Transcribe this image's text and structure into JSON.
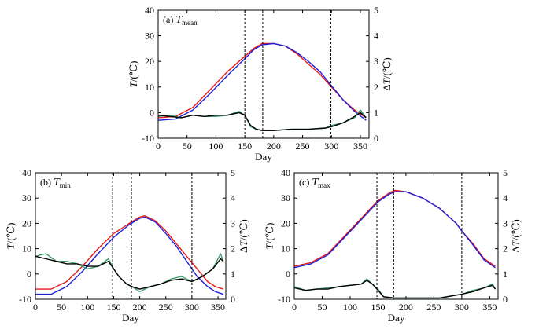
{
  "chart_data": [
    {
      "type": "line",
      "panel_label": "(a) ",
      "title_symbol": "T",
      "title_subscript": "mean",
      "xlabel": "Day",
      "ylabel_left_symbol": "T",
      "ylabel_left_unit": "/(℃)",
      "ylabel_right_prefix": "Δ",
      "ylabel_right_symbol": "T",
      "ylabel_right_unit": "/(℃)",
      "xlim": [
        0,
        365
      ],
      "ylim_left": [
        -10,
        40
      ],
      "ylim_right": [
        0,
        5
      ],
      "xticks": [
        0,
        50,
        100,
        150,
        200,
        250,
        300,
        350
      ],
      "yticks_left": [
        -10,
        0,
        10,
        20,
        30,
        40
      ],
      "yticks_right": [
        0,
        1,
        2,
        3,
        4,
        5
      ],
      "vlines": [
        150,
        181,
        299
      ],
      "series": [
        {
          "axis": "left",
          "color": "#e8191c",
          "x": [
            0,
            30,
            60,
            90,
            120,
            150,
            165,
            180,
            200,
            220,
            240,
            260,
            280,
            300,
            320,
            340,
            360
          ],
          "values": [
            -2,
            -1.5,
            2,
            9,
            16,
            22,
            25,
            27,
            27,
            26,
            23,
            19,
            15,
            10,
            5,
            1,
            -2
          ]
        },
        {
          "axis": "left",
          "color": "#1f1fd6",
          "x": [
            0,
            30,
            60,
            90,
            120,
            150,
            165,
            180,
            200,
            220,
            240,
            260,
            280,
            300,
            320,
            340,
            360
          ],
          "values": [
            -3,
            -2.5,
            1,
            7.5,
            14.5,
            21,
            24.5,
            26.5,
            27,
            26,
            23.5,
            20,
            16,
            10.5,
            5,
            0.5,
            -3
          ]
        },
        {
          "axis": "right",
          "color": "#3f9a6d",
          "x": [
            0,
            20,
            40,
            60,
            80,
            100,
            120,
            140,
            150,
            160,
            170,
            180,
            200,
            230,
            260,
            290,
            300,
            320,
            340,
            350,
            360
          ],
          "values": [
            0.85,
            0.9,
            0.8,
            0.9,
            0.85,
            0.85,
            0.9,
            1.05,
            0.9,
            0.45,
            0.35,
            0.3,
            0.3,
            0.35,
            0.35,
            0.4,
            0.5,
            0.6,
            0.8,
            1.1,
            0.8
          ]
        },
        {
          "axis": "right",
          "color": "#000000",
          "x": [
            0,
            20,
            40,
            60,
            80,
            100,
            120,
            140,
            150,
            160,
            170,
            180,
            200,
            230,
            260,
            290,
            300,
            320,
            340,
            350,
            360
          ],
          "values": [
            0.9,
            0.85,
            0.8,
            0.9,
            0.85,
            0.9,
            0.9,
            1.0,
            0.9,
            0.5,
            0.35,
            0.3,
            0.3,
            0.35,
            0.35,
            0.4,
            0.45,
            0.6,
            0.85,
            1.0,
            0.8
          ]
        }
      ]
    },
    {
      "type": "line",
      "panel_label": "(b) ",
      "title_symbol": "T",
      "title_subscript": "min",
      "xlabel": "Day",
      "ylabel_left_symbol": "T",
      "ylabel_left_unit": "/(℃)",
      "ylabel_right_prefix": "Δ",
      "ylabel_right_symbol": "T",
      "ylabel_right_unit": "/(℃)",
      "xlim": [
        0,
        365
      ],
      "ylim_left": [
        -10,
        40
      ],
      "ylim_right": [
        0,
        5
      ],
      "xticks": [
        0,
        50,
        100,
        150,
        200,
        250,
        300,
        350
      ],
      "yticks_left": [
        -10,
        0,
        10,
        20,
        30,
        40
      ],
      "yticks_right": [
        0,
        1,
        2,
        3,
        4,
        5
      ],
      "vlines": [
        148,
        184,
        300
      ],
      "series": [
        {
          "axis": "left",
          "color": "#e8191c",
          "x": [
            0,
            30,
            60,
            90,
            120,
            150,
            180,
            200,
            210,
            230,
            250,
            270,
            290,
            310,
            330,
            345,
            360
          ],
          "values": [
            -6,
            -6,
            -3,
            3,
            10,
            16,
            20,
            22.5,
            23,
            21,
            17,
            12,
            7,
            2,
            -3,
            -5,
            -6
          ]
        },
        {
          "axis": "left",
          "color": "#1f1fd6",
          "x": [
            0,
            30,
            60,
            90,
            120,
            150,
            180,
            200,
            210,
            230,
            250,
            270,
            290,
            310,
            330,
            345,
            360
          ],
          "values": [
            -8,
            -8,
            -5,
            1,
            8,
            14.5,
            19.5,
            22,
            22.5,
            20.5,
            16,
            11,
            5,
            -1,
            -5,
            -7,
            -8
          ]
        },
        {
          "axis": "right",
          "color": "#3f9a6d",
          "x": [
            0,
            20,
            40,
            60,
            80,
            100,
            120,
            140,
            150,
            160,
            175,
            185,
            200,
            220,
            240,
            260,
            280,
            300,
            320,
            340,
            355,
            360
          ],
          "values": [
            1.7,
            1.8,
            1.5,
            1.5,
            1.4,
            1.2,
            1.3,
            1.6,
            1.2,
            0.9,
            0.6,
            0.5,
            0.3,
            0.5,
            0.6,
            0.8,
            0.9,
            0.7,
            0.9,
            1.2,
            1.8,
            1.5
          ]
        },
        {
          "axis": "right",
          "color": "#000000",
          "x": [
            0,
            20,
            40,
            60,
            80,
            100,
            120,
            140,
            150,
            160,
            175,
            185,
            200,
            220,
            240,
            260,
            280,
            300,
            320,
            340,
            355,
            360
          ],
          "values": [
            1.7,
            1.6,
            1.5,
            1.4,
            1.4,
            1.3,
            1.3,
            1.5,
            1.2,
            0.9,
            0.6,
            0.5,
            0.4,
            0.5,
            0.6,
            0.75,
            0.8,
            0.7,
            0.9,
            1.2,
            1.6,
            1.5
          ]
        }
      ]
    },
    {
      "type": "line",
      "panel_label": "(c) ",
      "title_symbol": "T",
      "title_subscript": "max",
      "xlabel": "Day",
      "ylabel_left_symbol": "T",
      "ylabel_left_unit": "/(℃)",
      "ylabel_right_prefix": "Δ",
      "ylabel_right_symbol": "T",
      "ylabel_right_unit": "/(℃)",
      "xlim": [
        0,
        365
      ],
      "ylim_left": [
        -10,
        40
      ],
      "ylim_right": [
        0,
        5
      ],
      "xticks": [
        0,
        50,
        100,
        150,
        200,
        250,
        300,
        350
      ],
      "yticks_left": [
        -10,
        0,
        10,
        20,
        30,
        40
      ],
      "yticks_right": [
        0,
        1,
        2,
        3,
        4,
        5
      ],
      "vlines": [
        148,
        178,
        300
      ],
      "series": [
        {
          "axis": "left",
          "color": "#e8191c",
          "x": [
            0,
            30,
            60,
            90,
            120,
            150,
            170,
            180,
            200,
            230,
            260,
            290,
            300,
            320,
            340,
            360
          ],
          "values": [
            3,
            4.5,
            8,
            15,
            22,
            29,
            32,
            33,
            32.5,
            30,
            26,
            20,
            17,
            12,
            6,
            3
          ]
        },
        {
          "axis": "left",
          "color": "#1f1fd6",
          "x": [
            0,
            30,
            60,
            90,
            120,
            150,
            170,
            180,
            200,
            230,
            260,
            290,
            300,
            320,
            340,
            360
          ],
          "values": [
            2.5,
            4,
            7.5,
            14.5,
            21.5,
            28.5,
            31.5,
            32.5,
            32.5,
            30,
            26,
            20,
            17,
            11.5,
            5.5,
            2.5
          ]
        },
        {
          "axis": "right",
          "color": "#3f9a6d",
          "x": [
            0,
            20,
            40,
            60,
            80,
            100,
            120,
            130,
            140,
            150,
            160,
            180,
            220,
            260,
            300,
            320,
            340,
            355,
            360
          ],
          "values": [
            0.5,
            0.35,
            0.4,
            0.45,
            0.5,
            0.55,
            0.6,
            0.8,
            0.6,
            0.4,
            0.1,
            0.05,
            0.05,
            0.05,
            0.2,
            0.35,
            0.45,
            0.6,
            0.4
          ]
        },
        {
          "axis": "right",
          "color": "#000000",
          "x": [
            0,
            20,
            40,
            60,
            80,
            100,
            120,
            130,
            140,
            150,
            160,
            180,
            220,
            260,
            300,
            320,
            340,
            355,
            360
          ],
          "values": [
            0.45,
            0.35,
            0.4,
            0.4,
            0.5,
            0.55,
            0.6,
            0.75,
            0.6,
            0.35,
            0.1,
            0.05,
            0.05,
            0.05,
            0.2,
            0.3,
            0.45,
            0.55,
            0.4
          ]
        }
      ]
    }
  ]
}
